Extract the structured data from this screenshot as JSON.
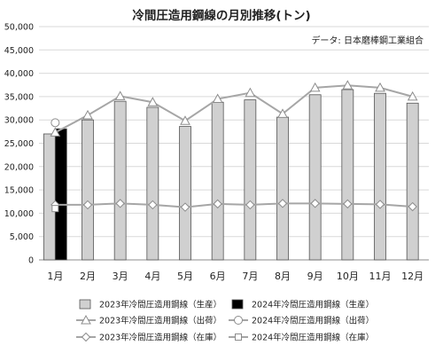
{
  "chart_data": {
    "type": "bar",
    "title": "冷間圧造用鋼線の月別推移(トン)",
    "source_note": "データ: 日本磨棒鋼工業組合",
    "categories": [
      "1月",
      "2月",
      "3月",
      "4月",
      "5月",
      "6月",
      "7月",
      "8月",
      "9月",
      "10月",
      "11月",
      "12月"
    ],
    "ylim": [
      0,
      50000
    ],
    "yticks": [
      0,
      5000,
      10000,
      15000,
      20000,
      25000,
      30000,
      35000,
      40000,
      45000,
      50000
    ],
    "ytick_labels": [
      "0",
      "5,000",
      "10,000",
      "15,000",
      "20,000",
      "25,000",
      "30,000",
      "35,000",
      "40,000",
      "45,000",
      "50,000"
    ],
    "grid": true,
    "legend_position": "bottom",
    "series": [
      {
        "name": "2023年冷間圧造用鋼線（生産）",
        "kind": "bar",
        "color": "#d0d0d0",
        "values": [
          27000,
          30000,
          34000,
          32700,
          28600,
          33800,
          34300,
          30600,
          35400,
          36500,
          35700,
          33600
        ]
      },
      {
        "name": "2024年冷間圧造用鋼線（生産）",
        "kind": "bar",
        "color": "#000000",
        "values": [
          28100,
          null,
          null,
          null,
          null,
          null,
          null,
          null,
          null,
          null,
          null,
          null
        ]
      },
      {
        "name": "2023年冷間圧造用鋼線（出荷）",
        "kind": "line",
        "marker": "triangle",
        "color": "#a6a6a6",
        "values": [
          27300,
          31000,
          35100,
          33800,
          29800,
          34500,
          35800,
          31300,
          36900,
          37400,
          36900,
          35000
        ]
      },
      {
        "name": "2024年冷間圧造用鋼線（出荷）",
        "kind": "line",
        "marker": "circle",
        "color": "#a6a6a6",
        "values": [
          29400,
          null,
          null,
          null,
          null,
          null,
          null,
          null,
          null,
          null,
          null,
          null
        ]
      },
      {
        "name": "2023年冷間圧造用鋼線（在庫）",
        "kind": "line",
        "marker": "diamond",
        "color": "#a6a6a6",
        "values": [
          11800,
          11800,
          12100,
          11800,
          11300,
          12000,
          11800,
          12100,
          12100,
          12000,
          11900,
          11400
        ]
      },
      {
        "name": "2024年冷間圧造用鋼線（在庫）",
        "kind": "line",
        "marker": "square",
        "color": "#a6a6a6",
        "values": [
          11000,
          null,
          null,
          null,
          null,
          null,
          null,
          null,
          null,
          null,
          null,
          null
        ]
      }
    ]
  }
}
